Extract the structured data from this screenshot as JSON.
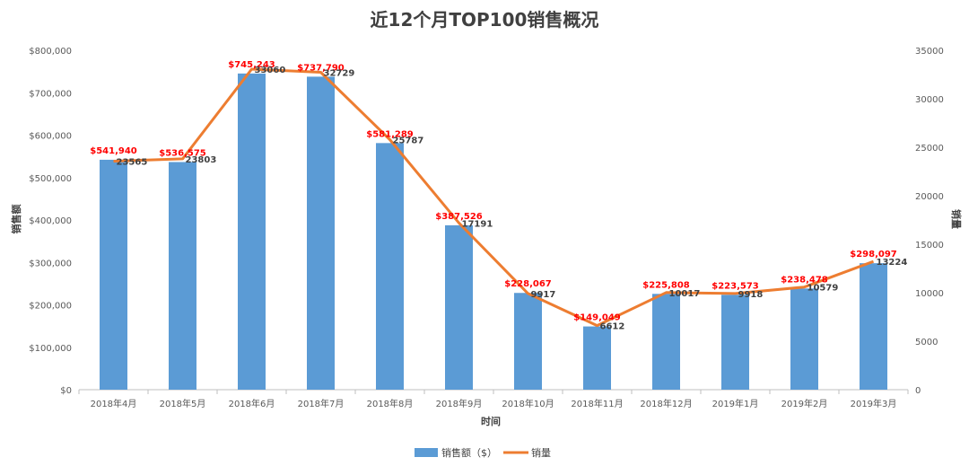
{
  "chart_data": {
    "type": "bar",
    "title": "近12个月TOP100销售概况",
    "xlabel": "时间",
    "ylabel": "销售额",
    "y2label": "销量",
    "categories": [
      "2018年4月",
      "2018年5月",
      "2018年6月",
      "2018年7月",
      "2018年8月",
      "2018年9月",
      "2018年10月",
      "2018年11月",
      "2018年12月",
      "2019年1月",
      "2019年2月",
      "2019年3月"
    ],
    "series": [
      {
        "name": "销售额（$）",
        "type": "bar",
        "axis": "left",
        "color": "#5b9bd5",
        "values": [
          541940,
          536575,
          745243,
          737790,
          581289,
          387526,
          228067,
          149049,
          225808,
          223573,
          238478,
          298097
        ],
        "labels": [
          "$541,940",
          "$536,575",
          "$745,243",
          "$737,790",
          "$581,289",
          "$387,526",
          "$228,067",
          "$149,049",
          "$225,808",
          "$223,573",
          "$238,478",
          "$298,097"
        ]
      },
      {
        "name": "销量",
        "type": "line",
        "axis": "right",
        "color": "#ed7d31",
        "values": [
          23565,
          23803,
          33060,
          32729,
          25787,
          17191,
          9917,
          6612,
          10017,
          9918,
          10579,
          13224
        ],
        "labels": [
          "23565",
          "23803",
          "33060",
          "32729",
          "25787",
          "17191",
          "9917",
          "6612",
          "10017",
          "9918",
          "10579",
          "13224"
        ]
      }
    ],
    "ylim": [
      0,
      800000
    ],
    "y2lim": [
      0,
      35000
    ],
    "y_ticks": [
      "$0",
      "$100,000",
      "$200,000",
      "$300,000",
      "$400,000",
      "$500,000",
      "$600,000",
      "$700,000",
      "$800,000"
    ],
    "y2_ticks": [
      "0",
      "5000",
      "10000",
      "15000",
      "20000",
      "25000",
      "30000",
      "35000"
    ],
    "y_tick_values": [
      0,
      100000,
      200000,
      300000,
      400000,
      500000,
      600000,
      700000,
      800000
    ],
    "y2_tick_values": [
      0,
      5000,
      10000,
      15000,
      20000,
      25000,
      30000,
      35000
    ],
    "grid": false,
    "legend_position": "bottom"
  }
}
